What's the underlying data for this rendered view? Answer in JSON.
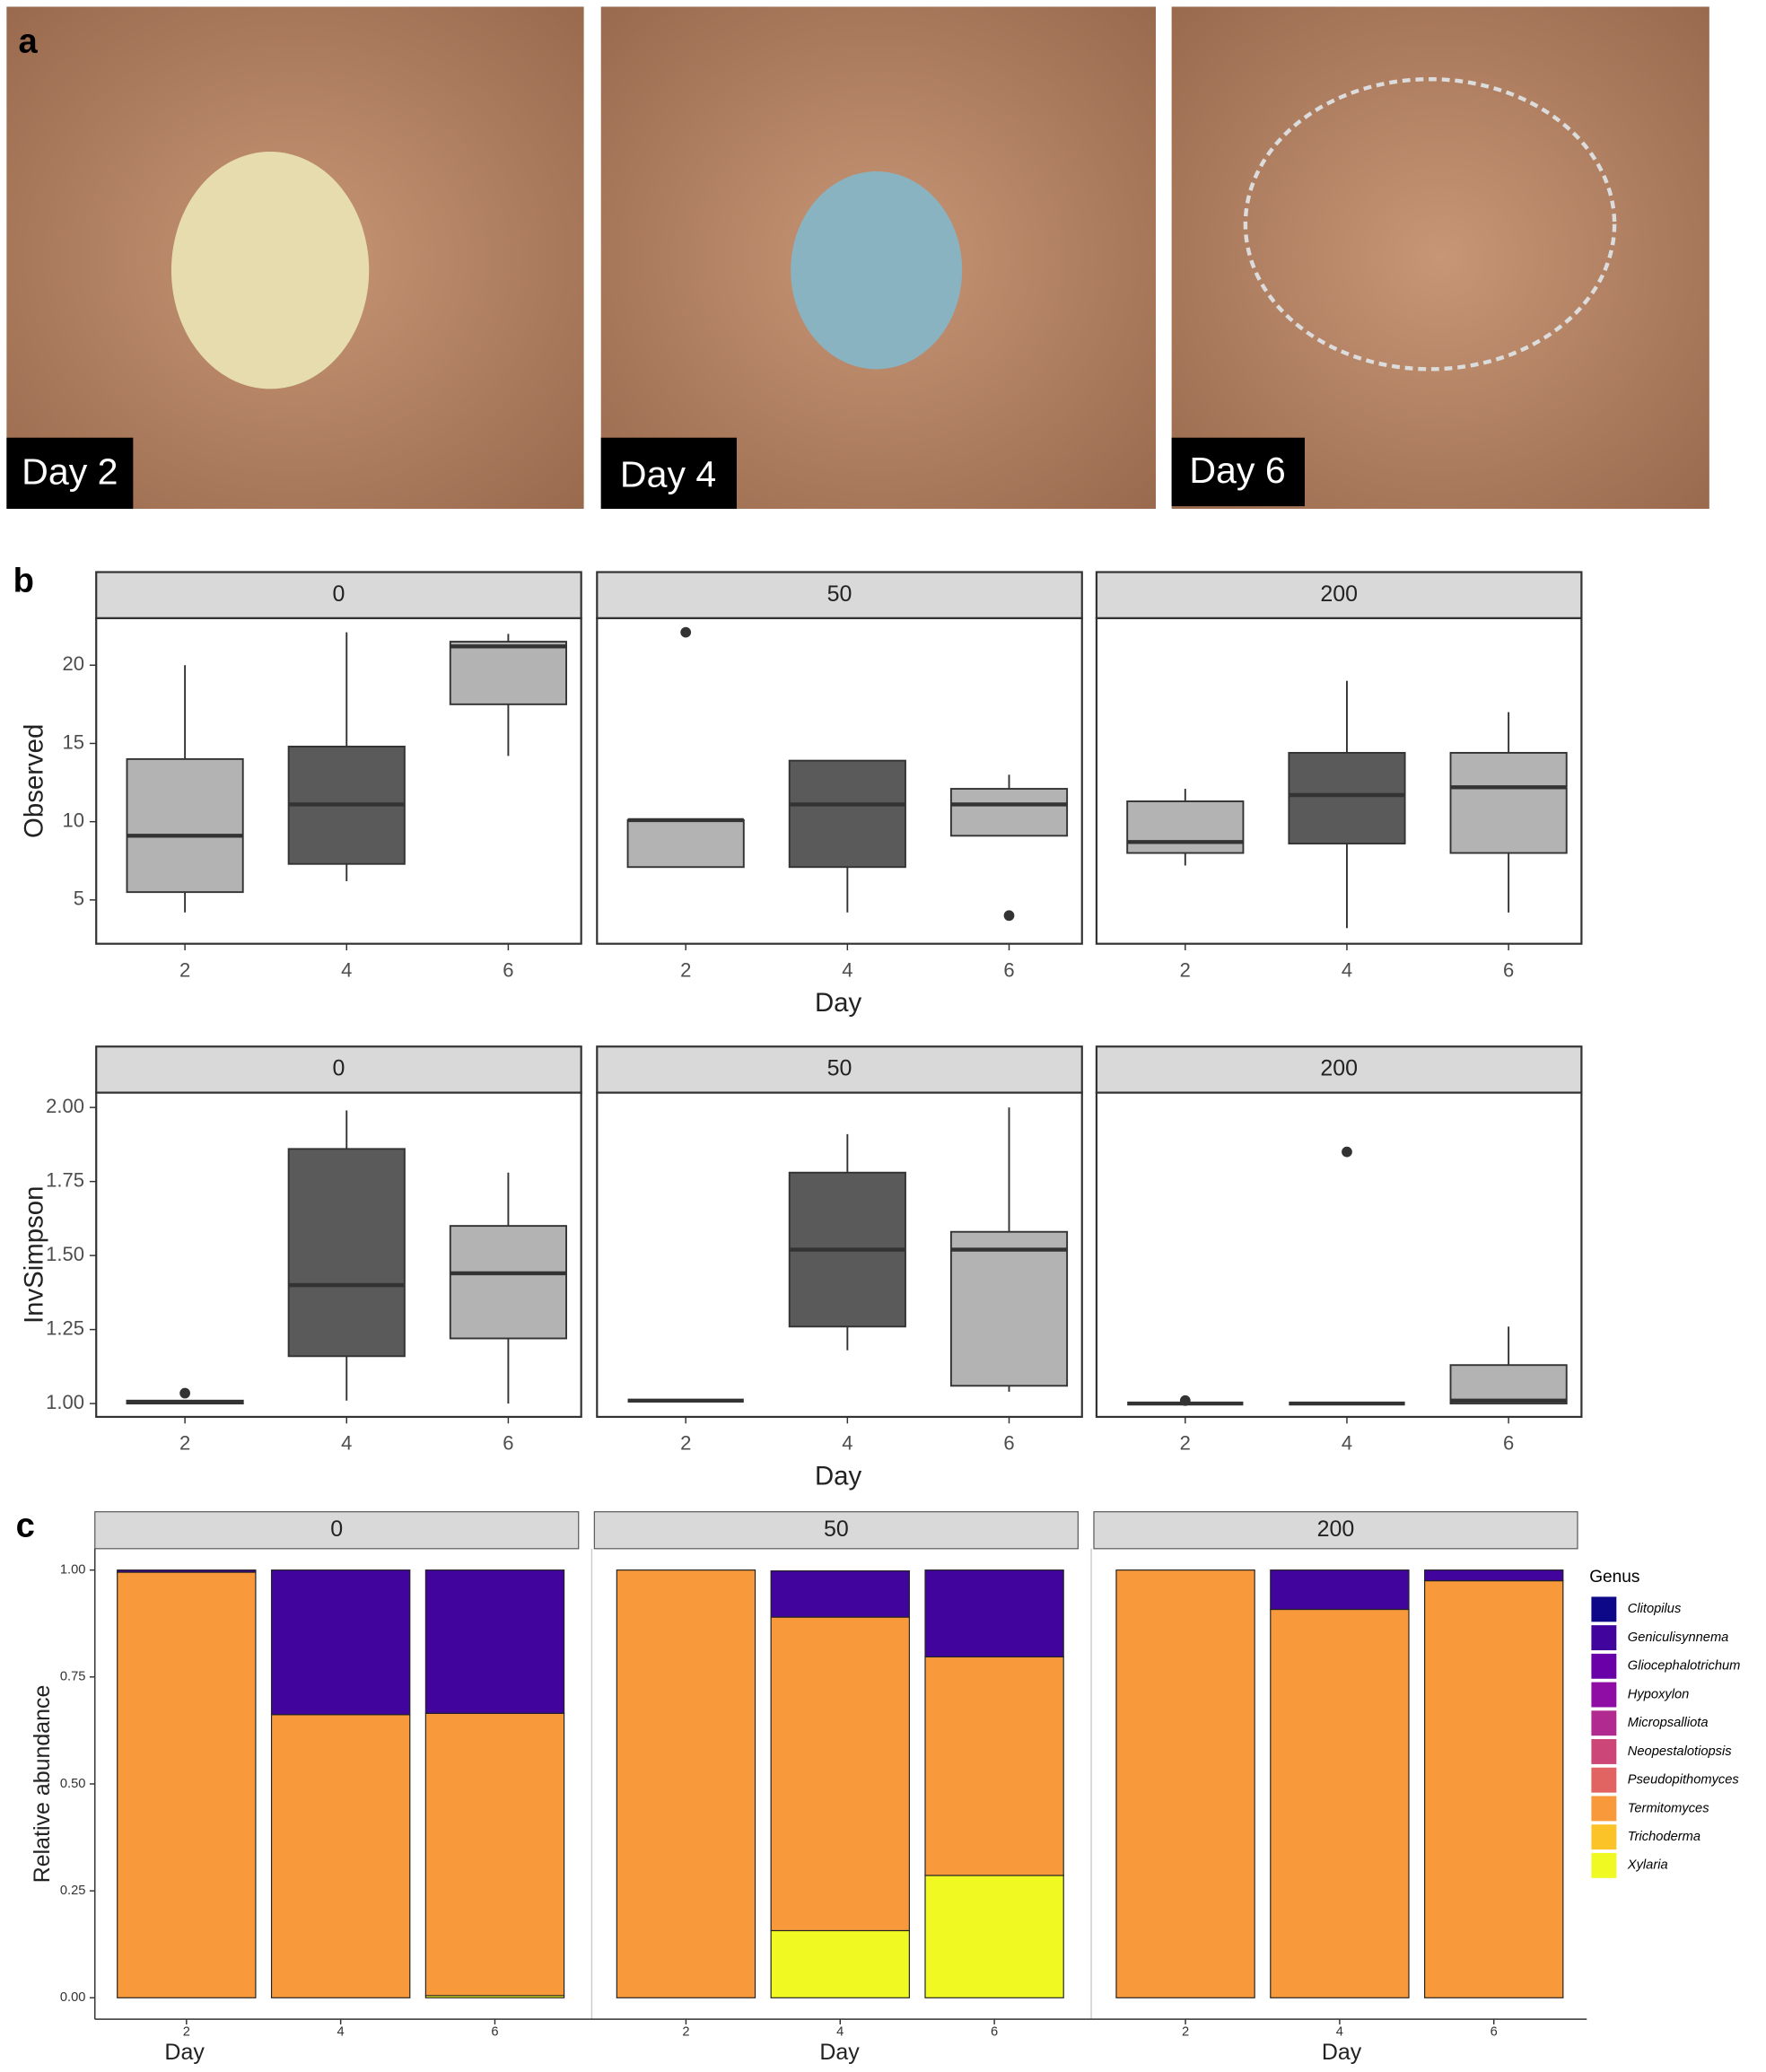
{
  "photos": {
    "label": "a",
    "panels": [
      {
        "caption": "Day 2"
      },
      {
        "caption": "Day 4"
      },
      {
        "caption": "Day 6"
      }
    ]
  },
  "chart_data": [
    {
      "type": "box",
      "panel_label": "b",
      "ylabel": "Observed",
      "xlabel": "Day",
      "ylim": [
        2.2,
        23
      ],
      "yticks": [
        5,
        10,
        15,
        20
      ],
      "categories": [
        "2",
        "4",
        "6"
      ],
      "facets": [
        {
          "name": "0",
          "boxes": [
            {
              "fill": "#b3b3b3",
              "min": 4.2,
              "q1": 5.5,
              "median": 9.1,
              "q3": 14,
              "max": 20,
              "outliers": []
            },
            {
              "fill": "#5a5a5a",
              "min": 6.2,
              "q1": 7.3,
              "median": 11.1,
              "q3": 14.8,
              "max": 22.1,
              "outliers": []
            },
            {
              "fill": "#b3b3b3",
              "min": 14.2,
              "q1": 17.5,
              "median": 21.2,
              "q3": 21.5,
              "max": 22,
              "outliers": []
            }
          ]
        },
        {
          "name": "50",
          "boxes": [
            {
              "fill": "#b3b3b3",
              "min": 7.1,
              "q1": 7.1,
              "median": 10.1,
              "q3": 10.1,
              "max": 10.1,
              "outliers": [
                22.1
              ]
            },
            {
              "fill": "#5a5a5a",
              "min": 4.2,
              "q1": 7.1,
              "median": 11.1,
              "q3": 13.9,
              "max": 13.9,
              "outliers": []
            },
            {
              "fill": "#b3b3b3",
              "min": 9.1,
              "q1": 9.1,
              "median": 11.1,
              "q3": 12.1,
              "max": 13,
              "outliers": [
                4
              ]
            }
          ]
        },
        {
          "name": "200",
          "boxes": [
            {
              "fill": "#b3b3b3",
              "min": 7.2,
              "q1": 8,
              "median": 8.7,
              "q3": 11.3,
              "max": 12.1,
              "outliers": []
            },
            {
              "fill": "#5a5a5a",
              "min": 3.2,
              "q1": 8.6,
              "median": 11.7,
              "q3": 14.4,
              "max": 19,
              "outliers": []
            },
            {
              "fill": "#b3b3b3",
              "min": 4.2,
              "q1": 8,
              "median": 12.2,
              "q3": 14.4,
              "max": 17,
              "outliers": []
            }
          ]
        }
      ]
    },
    {
      "type": "box",
      "ylabel": "InvSimpson",
      "xlabel": "Day",
      "ylim": [
        0.955,
        2.05
      ],
      "yticks": [
        {
          "value": 1,
          "label": "1.00"
        },
        {
          "value": 1.25,
          "label": "1.25"
        },
        {
          "value": 1.5,
          "label": "1.50"
        },
        {
          "value": 1.75,
          "label": "1.75"
        },
        {
          "value": 2,
          "label": "2.00"
        }
      ],
      "categories": [
        "2",
        "4",
        "6"
      ],
      "facets": [
        {
          "name": "0",
          "boxes": [
            {
              "fill": "#5a5a5a",
              "min": 1,
              "q1": 1,
              "median": 1.005,
              "q3": 1.01,
              "max": 1.01,
              "outliers": [
                1.035
              ]
            },
            {
              "fill": "#5a5a5a",
              "min": 1.01,
              "q1": 1.16,
              "median": 1.4,
              "q3": 1.86,
              "max": 1.99,
              "outliers": []
            },
            {
              "fill": "#b3b3b3",
              "min": 1,
              "q1": 1.22,
              "median": 1.44,
              "q3": 1.6,
              "max": 1.78,
              "outliers": []
            }
          ]
        },
        {
          "name": "50",
          "boxes": [
            {
              "fill": "#b3b3b3",
              "min": 1.01,
              "q1": 1.01,
              "median": 1.01,
              "q3": 1.01,
              "max": 1.01,
              "outliers": []
            },
            {
              "fill": "#5a5a5a",
              "min": 1.18,
              "q1": 1.26,
              "median": 1.52,
              "q3": 1.78,
              "max": 1.91,
              "outliers": []
            },
            {
              "fill": "#b3b3b3",
              "min": 1.04,
              "q1": 1.06,
              "median": 1.52,
              "q3": 1.58,
              "max": 2,
              "outliers": []
            }
          ]
        },
        {
          "name": "200",
          "boxes": [
            {
              "fill": "#b3b3b3",
              "min": 1,
              "q1": 1,
              "median": 1,
              "q3": 1,
              "max": 1,
              "outliers": [
                1.01
              ]
            },
            {
              "fill": "#5a5a5a",
              "min": 1,
              "q1": 1,
              "median": 1,
              "q3": 1,
              "max": 1,
              "outliers": [
                1.85
              ]
            },
            {
              "fill": "#b3b3b3",
              "min": 1,
              "q1": 1,
              "median": 1.01,
              "q3": 1.13,
              "max": 1.26,
              "outliers": []
            }
          ]
        }
      ]
    },
    {
      "type": "stacked_bar",
      "panel_label": "c",
      "ylabel": "Relative abundance",
      "xlabel": "Day",
      "ylim": [
        -0.05,
        1.05
      ],
      "yticks": [
        {
          "value": 0,
          "label": "0.00"
        },
        {
          "value": 0.25,
          "label": "0.25"
        },
        {
          "value": 0.5,
          "label": "0.50"
        },
        {
          "value": 0.75,
          "label": "0.75"
        },
        {
          "value": 1,
          "label": "1.00"
        }
      ],
      "categories": [
        "2",
        "4",
        "6"
      ],
      "facets": [
        "0",
        "50",
        "200"
      ],
      "legend_title": "Genus",
      "series": [
        {
          "name": "Clitopilus",
          "color": "#0d0887",
          "values": [
            [
              0,
              0,
              0
            ],
            [
              0,
              0,
              0
            ],
            [
              0,
              0,
              0
            ]
          ]
        },
        {
          "name": "Geniculisynnema",
          "color": "#41049d",
          "values": [
            [
              0.005,
              0.338,
              0.335
            ],
            [
              0,
              0.108,
              0.203
            ],
            [
              0,
              0.092,
              0.025
            ]
          ]
        },
        {
          "name": "Gliocephalotrichum",
          "color": "#6a00a8",
          "values": [
            [
              0,
              0,
              0
            ],
            [
              0,
              0,
              0
            ],
            [
              0,
              0,
              0
            ]
          ]
        },
        {
          "name": "Hypoxylon",
          "color": "#8f0da4",
          "values": [
            [
              0,
              0,
              0
            ],
            [
              0,
              0,
              0
            ],
            [
              0,
              0,
              0
            ]
          ]
        },
        {
          "name": "Micropsalliota",
          "color": "#b12a90",
          "values": [
            [
              0,
              0,
              0
            ],
            [
              0,
              0,
              0
            ],
            [
              0,
              0,
              0
            ]
          ]
        },
        {
          "name": "Neopestalotiopsis",
          "color": "#cc4778",
          "values": [
            [
              0,
              0,
              0
            ],
            [
              0,
              0,
              0
            ],
            [
              0,
              0,
              0
            ]
          ]
        },
        {
          "name": "Pseudopithomyces",
          "color": "#e16462",
          "values": [
            [
              0,
              0,
              0
            ],
            [
              0,
              0,
              0
            ],
            [
              0,
              0,
              0
            ]
          ]
        },
        {
          "name": "Termitomyces",
          "color": "#f89a3c",
          "values": [
            [
              0.995,
              0.662,
              0.66
            ],
            [
              1,
              0.733,
              0.511
            ],
            [
              1,
              0.908,
              0.975
            ]
          ]
        },
        {
          "name": "Trichoderma",
          "color": "#fcc328",
          "values": [
            [
              0,
              0,
              0
            ],
            [
              0,
              0,
              0
            ],
            [
              0,
              0,
              0
            ]
          ]
        },
        {
          "name": "Xylaria",
          "color": "#f0f921",
          "values": [
            [
              0,
              0,
              0.005
            ],
            [
              0,
              0.157,
              0.286
            ],
            [
              0,
              0,
              0
            ]
          ]
        }
      ]
    }
  ]
}
